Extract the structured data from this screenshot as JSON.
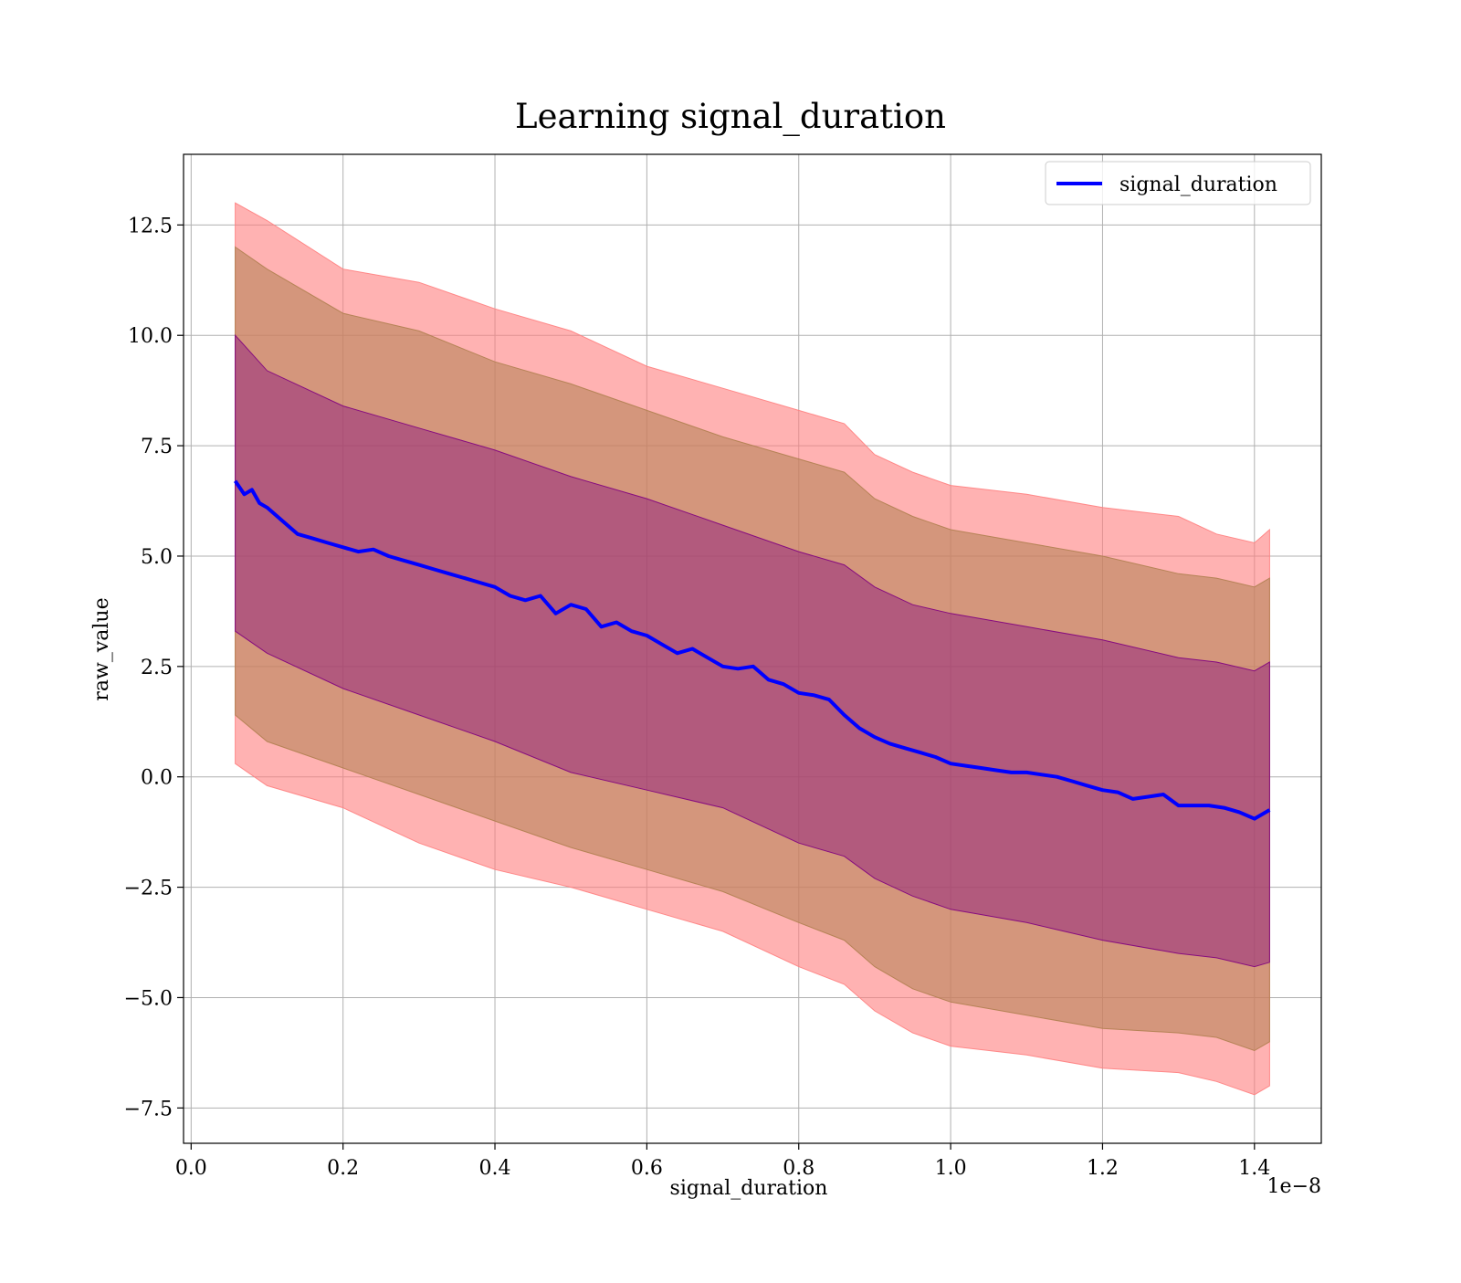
{
  "chart_data": {
    "type": "line",
    "title": "Learning signal_duration",
    "xlabel": "signal_duration",
    "ylabel": "raw_value",
    "x_offset_label": "1e−8",
    "xlim": [
      -0.01,
      1.488
    ],
    "ylim": [
      -8.3,
      14.1
    ],
    "x_ticks": [
      0.0,
      0.2,
      0.4,
      0.6,
      0.8,
      1.0,
      1.2,
      1.4
    ],
    "x_tick_labels": [
      "0.0",
      "0.2",
      "0.4",
      "0.6",
      "0.8",
      "1.0",
      "1.2",
      "1.4"
    ],
    "y_ticks": [
      -7.5,
      -5.0,
      -2.5,
      0.0,
      2.5,
      5.0,
      7.5,
      10.0,
      12.5
    ],
    "y_tick_labels": [
      "−7.5",
      "−5.0",
      "−2.5",
      "0.0",
      "2.5",
      "5.0",
      "7.5",
      "10.0",
      "12.5"
    ],
    "grid": true,
    "legend_position": "top-right",
    "series": [
      {
        "name": "signal_duration",
        "color": "#0000ff",
        "x": [
          0.058,
          0.07,
          0.08,
          0.09,
          0.1,
          0.12,
          0.14,
          0.16,
          0.18,
          0.2,
          0.22,
          0.24,
          0.26,
          0.28,
          0.3,
          0.32,
          0.34,
          0.36,
          0.38,
          0.4,
          0.42,
          0.44,
          0.46,
          0.48,
          0.5,
          0.52,
          0.54,
          0.56,
          0.58,
          0.6,
          0.62,
          0.64,
          0.66,
          0.68,
          0.7,
          0.72,
          0.74,
          0.76,
          0.78,
          0.8,
          0.82,
          0.84,
          0.86,
          0.88,
          0.9,
          0.92,
          0.94,
          0.96,
          0.98,
          1.0,
          1.02,
          1.04,
          1.06,
          1.08,
          1.1,
          1.12,
          1.14,
          1.16,
          1.18,
          1.2,
          1.22,
          1.24,
          1.26,
          1.28,
          1.3,
          1.32,
          1.34,
          1.36,
          1.38,
          1.4,
          1.42
        ],
        "y": [
          6.7,
          6.4,
          6.5,
          6.2,
          6.1,
          5.8,
          5.5,
          5.4,
          5.3,
          5.2,
          5.1,
          5.15,
          5.0,
          4.9,
          4.8,
          4.7,
          4.6,
          4.5,
          4.4,
          4.3,
          4.1,
          4.0,
          4.1,
          3.7,
          3.9,
          3.8,
          3.4,
          3.5,
          3.3,
          3.2,
          3.0,
          2.8,
          2.9,
          2.7,
          2.5,
          2.45,
          2.5,
          2.2,
          2.1,
          1.9,
          1.85,
          1.75,
          1.4,
          1.1,
          0.9,
          0.75,
          0.65,
          0.55,
          0.45,
          0.3,
          0.25,
          0.2,
          0.15,
          0.1,
          0.1,
          0.05,
          0.0,
          -0.1,
          -0.2,
          -0.3,
          -0.35,
          -0.5,
          -0.45,
          -0.4,
          -0.65,
          -0.65,
          -0.65,
          -0.7,
          -0.8,
          -0.95,
          -0.75
        ]
      }
    ],
    "bands": [
      {
        "color": "#ff7f7f",
        "opacity": 0.6,
        "x": [
          0.058,
          0.1,
          0.2,
          0.3,
          0.4,
          0.5,
          0.6,
          0.7,
          0.8,
          0.86,
          0.9,
          0.95,
          1.0,
          1.1,
          1.2,
          1.3,
          1.35,
          1.4,
          1.42
        ],
        "upper": [
          13.0,
          12.6,
          11.5,
          11.2,
          10.6,
          10.1,
          9.3,
          8.8,
          8.3,
          8.0,
          7.3,
          6.9,
          6.6,
          6.4,
          6.1,
          5.9,
          5.5,
          5.3,
          5.6
        ],
        "lower": [
          0.3,
          -0.2,
          -0.7,
          -1.5,
          -2.1,
          -2.5,
          -3.0,
          -3.5,
          -4.3,
          -4.7,
          -5.3,
          -5.8,
          -6.1,
          -6.3,
          -6.6,
          -6.7,
          -6.9,
          -7.2,
          -7.0
        ]
      },
      {
        "color": "#b08050",
        "opacity": 0.55,
        "x": [
          0.058,
          0.1,
          0.2,
          0.3,
          0.4,
          0.5,
          0.6,
          0.7,
          0.8,
          0.86,
          0.9,
          0.95,
          1.0,
          1.1,
          1.2,
          1.3,
          1.35,
          1.4,
          1.42
        ],
        "upper": [
          12.0,
          11.5,
          10.5,
          10.1,
          9.4,
          8.9,
          8.3,
          7.7,
          7.2,
          6.9,
          6.3,
          5.9,
          5.6,
          5.3,
          5.0,
          4.6,
          4.5,
          4.3,
          4.5
        ],
        "lower": [
          1.4,
          0.8,
          0.2,
          -0.4,
          -1.0,
          -1.6,
          -2.1,
          -2.6,
          -3.3,
          -3.7,
          -4.3,
          -4.8,
          -5.1,
          -5.4,
          -5.7,
          -5.8,
          -5.9,
          -6.2,
          -6.0
        ]
      },
      {
        "color": "#800080",
        "opacity": 0.4,
        "x": [
          0.058,
          0.1,
          0.2,
          0.3,
          0.4,
          0.5,
          0.6,
          0.7,
          0.8,
          0.86,
          0.9,
          0.95,
          1.0,
          1.1,
          1.2,
          1.3,
          1.35,
          1.4,
          1.42
        ],
        "upper": [
          10.0,
          9.2,
          8.4,
          7.9,
          7.4,
          6.8,
          6.3,
          5.7,
          5.1,
          4.8,
          4.3,
          3.9,
          3.7,
          3.4,
          3.1,
          2.7,
          2.6,
          2.4,
          2.6
        ],
        "lower": [
          3.3,
          2.8,
          2.0,
          1.4,
          0.8,
          0.1,
          -0.3,
          -0.7,
          -1.5,
          -1.8,
          -2.3,
          -2.7,
          -3.0,
          -3.3,
          -3.7,
          -4.0,
          -4.1,
          -4.3,
          -4.2
        ]
      }
    ]
  }
}
